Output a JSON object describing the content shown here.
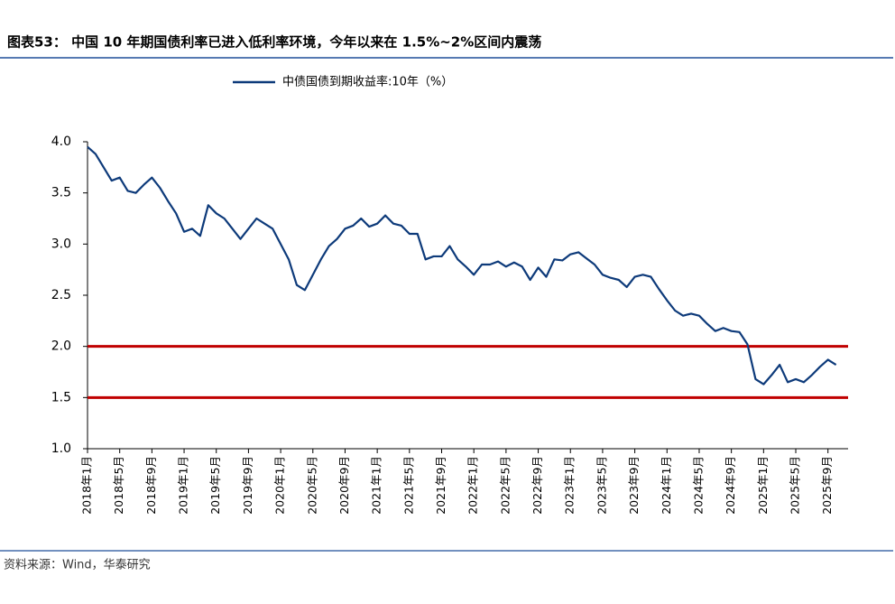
{
  "chart_data": {
    "type": "line",
    "title": "图表53：  中国 10 年期国债利率已进入低利率环境，今年以来在 1.5%~2%区间内震荡",
    "source": "资料来源：Wind，华泰研究",
    "categories": [
      "2018年1月",
      null,
      null,
      null,
      "2018年5月",
      null,
      null,
      null,
      "2018年9月",
      null,
      null,
      null,
      "2019年1月",
      null,
      null,
      null,
      "2019年5月",
      null,
      null,
      null,
      "2019年9月",
      null,
      null,
      null,
      "2020年1月",
      null,
      null,
      null,
      "2020年5月",
      null,
      null,
      null,
      "2020年9月",
      null,
      null,
      null,
      "2021年1月",
      null,
      null,
      null,
      "2021年5月",
      null,
      null,
      null,
      "2021年9月",
      null,
      null,
      null,
      "2022年1月",
      null,
      null,
      null,
      "2022年5月",
      null,
      null,
      null,
      "2022年9月",
      null,
      null,
      null,
      "2023年1月",
      null,
      null,
      null,
      "2023年5月",
      null,
      null,
      null,
      "2023年9月",
      null,
      null,
      null,
      "2024年1月",
      null,
      null,
      null,
      "2024年5月",
      null,
      null,
      null,
      "2024年9月",
      null,
      null,
      null,
      "2025年1月",
      null,
      null,
      null,
      "2025年5月",
      null,
      null,
      null,
      "2025年9月",
      null
    ],
    "series": [
      {
        "name": "中债国债到期收益率:10年（%）",
        "color": "#0d3a7a",
        "values": [
          3.95,
          3.88,
          3.75,
          3.62,
          3.65,
          3.52,
          3.5,
          3.58,
          3.65,
          3.55,
          3.42,
          3.3,
          3.12,
          3.15,
          3.08,
          3.38,
          3.3,
          3.25,
          3.15,
          3.05,
          3.15,
          3.25,
          3.2,
          3.15,
          3.0,
          2.85,
          2.6,
          2.55,
          2.7,
          2.85,
          2.98,
          3.05,
          3.15,
          3.18,
          3.25,
          3.17,
          3.2,
          3.28,
          3.2,
          3.18,
          3.1,
          3.1,
          2.85,
          2.88,
          2.88,
          2.98,
          2.85,
          2.78,
          2.7,
          2.8,
          2.8,
          2.83,
          2.78,
          2.82,
          2.78,
          2.65,
          2.77,
          2.68,
          2.85,
          2.84,
          2.9,
          2.92,
          2.86,
          2.8,
          2.7,
          2.67,
          2.65,
          2.58,
          2.68,
          2.7,
          2.68,
          2.56,
          2.45,
          2.35,
          2.3,
          2.32,
          2.3,
          2.22,
          2.15,
          2.18,
          2.15,
          2.14,
          2.02,
          1.68,
          1.63,
          1.72,
          1.82,
          1.65,
          1.68,
          1.65,
          1.72,
          1.8,
          1.87,
          1.82
        ]
      }
    ],
    "reference_lines": [
      {
        "value": 2.0,
        "color": "#c00000"
      },
      {
        "value": 1.5,
        "color": "#c00000"
      }
    ],
    "ylim": [
      1.0,
      4.0
    ],
    "yticks": [
      {
        "value": 1.0,
        "label": "1.0"
      },
      {
        "value": 1.5,
        "label": "1.5"
      },
      {
        "value": 2.0,
        "label": "2.0"
      },
      {
        "value": 2.5,
        "label": "2.5"
      },
      {
        "value": 3.0,
        "label": "3.0"
      },
      {
        "value": 3.5,
        "label": "3.5"
      },
      {
        "value": 4.0,
        "label": "4.0"
      }
    ]
  }
}
